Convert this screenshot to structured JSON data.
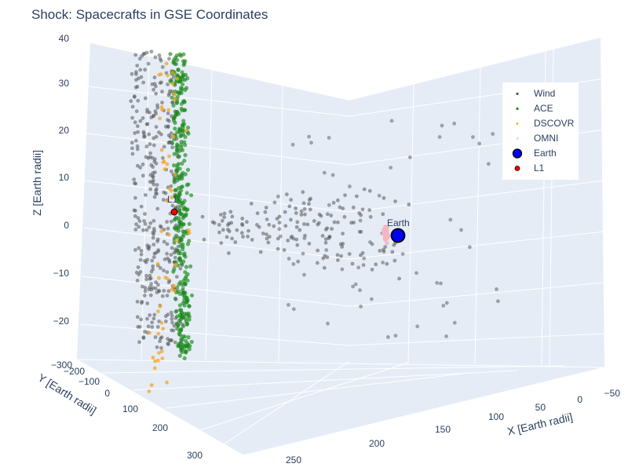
{
  "title": "Shock: Spacecrafts in GSE Coordinates",
  "chart_data": {
    "type": "scatter",
    "projection": "3d",
    "title": "Shock: Spacecrafts in GSE Coordinates",
    "axes": {
      "x": {
        "label": "X [Earth radii]",
        "range": [
          -50,
          280
        ],
        "ticks": [
          -50,
          0,
          50,
          100,
          150,
          200,
          250
        ]
      },
      "y": {
        "label": "Y [Earth radii]",
        "range": [
          -300,
          330
        ],
        "ticks": [
          -300,
          -200,
          -100,
          0,
          100,
          200,
          300
        ]
      },
      "z": {
        "label": "Z [Earth radii]",
        "range": [
          -30,
          42
        ],
        "ticks": [
          -20,
          -10,
          0,
          10,
          20,
          30,
          40
        ]
      }
    },
    "grid": true,
    "legend_position": "top-right",
    "series": [
      {
        "name": "Wind",
        "color": "#555555",
        "count_estimate": 600
      },
      {
        "name": "ACE",
        "color": "#1a8a1a",
        "count_estimate": 350
      },
      {
        "name": "DSCOVR",
        "color": "#f5a623",
        "count_estimate": 60
      },
      {
        "name": "OMNI",
        "color": "#f4b6c2",
        "count_estimate": 40
      },
      {
        "name": "Earth",
        "color": "#0000ff",
        "points": [
          {
            "x": 0,
            "y": 0,
            "z": 0
          }
        ]
      },
      {
        "name": "L1",
        "color": "#ff0000",
        "points": [
          {
            "x": 235,
            "y": 0,
            "z": 0
          }
        ]
      }
    ],
    "annotations": [
      "Earth",
      "L1"
    ]
  },
  "legend": {
    "items": [
      {
        "label": "Wind",
        "color": "#555555"
      },
      {
        "label": "ACE",
        "color": "#1a8a1a"
      },
      {
        "label": "DSCOVR",
        "color": "#f5a623"
      },
      {
        "label": "OMNI",
        "color": "#f4b6c2"
      },
      {
        "label": "Earth",
        "color": "#0000ff"
      },
      {
        "label": "L1",
        "color": "#ff0000"
      }
    ]
  }
}
